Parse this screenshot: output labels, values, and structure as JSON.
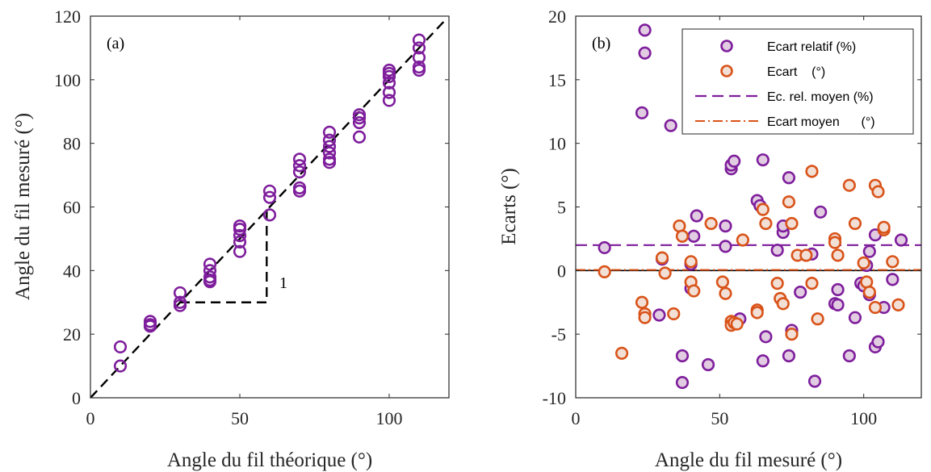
{
  "chart_data": [
    {
      "panel": "a",
      "type": "scatter",
      "panel_label": "(a)",
      "xlabel": "Angle du fil théorique (°)",
      "ylabel": "Angle du fil mesuré (°)",
      "xlim": [
        0,
        120
      ],
      "ylim": [
        0,
        120
      ],
      "xticks": [
        0,
        50,
        100
      ],
      "yticks": [
        0,
        20,
        40,
        60,
        80,
        100,
        120
      ],
      "marker_color": "#7E1E9C",
      "points": [
        [
          10,
          16
        ],
        [
          10,
          10
        ],
        [
          20,
          24
        ],
        [
          20,
          23
        ],
        [
          20,
          22.5
        ],
        [
          30,
          33
        ],
        [
          30,
          30
        ],
        [
          30,
          29
        ],
        [
          40,
          42
        ],
        [
          40,
          40
        ],
        [
          40,
          38
        ],
        [
          40,
          36.5
        ],
        [
          40,
          37
        ],
        [
          50,
          54
        ],
        [
          50,
          53
        ],
        [
          50,
          51
        ],
        [
          50,
          49
        ],
        [
          50,
          46
        ],
        [
          60,
          65
        ],
        [
          60,
          63
        ],
        [
          60,
          57.5
        ],
        [
          70,
          75
        ],
        [
          70,
          73
        ],
        [
          70,
          71
        ],
        [
          70,
          66
        ],
        [
          70,
          65
        ],
        [
          80,
          83.5
        ],
        [
          80,
          81
        ],
        [
          80,
          79
        ],
        [
          80,
          77
        ],
        [
          80,
          75
        ],
        [
          80,
          74
        ],
        [
          90,
          89
        ],
        [
          90,
          88
        ],
        [
          90,
          86.5
        ],
        [
          90,
          82
        ],
        [
          100,
          103
        ],
        [
          100,
          102
        ],
        [
          100,
          101
        ],
        [
          100,
          99
        ],
        [
          100,
          96
        ],
        [
          100,
          93.5
        ],
        [
          110,
          112.5
        ],
        [
          110,
          110
        ],
        [
          110,
          107
        ],
        [
          110,
          104
        ],
        [
          110,
          103
        ]
      ],
      "reference_line": {
        "style": "dashed",
        "from": [
          0,
          0
        ],
        "to": [
          119,
          119
        ]
      },
      "slope_triangle": {
        "x": [
          30,
          59
        ],
        "y": [
          30,
          59
        ],
        "label": "1"
      }
    },
    {
      "panel": "b",
      "type": "scatter",
      "panel_label": "(b)",
      "xlabel": "Angle du fil mesuré (°)",
      "ylabel": "Ecarts    (°)",
      "xlim": [
        0,
        120
      ],
      "ylim": [
        -10,
        20
      ],
      "xticks": [
        0,
        50,
        100
      ],
      "yticks": [
        -10,
        -5,
        0,
        5,
        10,
        15,
        20
      ],
      "legend_position": "top-right",
      "series": [
        {
          "name": "Ecart relatif (%)",
          "color": "#7E1E9C",
          "fill": "#E2CCE2",
          "points": [
            [
              10,
              1.8
            ],
            [
              23,
              12.4
            ],
            [
              24,
              18.9
            ],
            [
              24,
              17.1
            ],
            [
              29,
              -3.5
            ],
            [
              30,
              0.9
            ],
            [
              33,
              11.4
            ],
            [
              37,
              -6.7
            ],
            [
              37,
              -8.8
            ],
            [
              40,
              -1.4
            ],
            [
              40,
              0.5
            ],
            [
              41,
              2.7
            ],
            [
              42,
              4.3
            ],
            [
              46,
              -7.4
            ],
            [
              52,
              3.5
            ],
            [
              52,
              1.9
            ],
            [
              54,
              8.0
            ],
            [
              54,
              8.3
            ],
            [
              55,
              8.6
            ],
            [
              57,
              -3.8
            ],
            [
              63,
              5.5
            ],
            [
              64,
              5.1
            ],
            [
              65,
              -7.1
            ],
            [
              66,
              -5.2
            ],
            [
              65,
              8.7
            ],
            [
              70,
              1.6
            ],
            [
              72,
              3.0
            ],
            [
              72,
              3.5
            ],
            [
              74,
              7.3
            ],
            [
              74,
              -6.7
            ],
            [
              75,
              -4.7
            ],
            [
              78,
              -1.7
            ],
            [
              80,
              1.2
            ],
            [
              82,
              1.3
            ],
            [
              83,
              -8.7
            ],
            [
              85,
              4.6
            ],
            [
              90,
              -2.6
            ],
            [
              91,
              -2.7
            ],
            [
              91,
              -1.5
            ],
            [
              95,
              -6.7
            ],
            [
              97,
              -3.7
            ],
            [
              99,
              -1.0
            ],
            [
              100,
              -1.2
            ],
            [
              101,
              0.4
            ],
            [
              102,
              1.5
            ],
            [
              102,
              -1.9
            ],
            [
              104,
              2.8
            ],
            [
              104,
              -6.0
            ],
            [
              105,
              -5.6
            ],
            [
              107,
              -2.9
            ],
            [
              110,
              -0.7
            ],
            [
              113,
              2.4
            ]
          ]
        },
        {
          "name": "Ecart    (°)",
          "color": "#D95319",
          "fill": "#F2DFD5",
          "points": [
            [
              10,
              -0.1
            ],
            [
              16,
              -6.5
            ],
            [
              23,
              -2.5
            ],
            [
              24,
              -3.4
            ],
            [
              24,
              -3.7
            ],
            [
              30,
              1.0
            ],
            [
              31,
              -0.2
            ],
            [
              34,
              -3.4
            ],
            [
              36,
              3.5
            ],
            [
              37,
              2.7
            ],
            [
              40,
              0.7
            ],
            [
              40,
              -0.9
            ],
            [
              41,
              -1.6
            ],
            [
              47,
              3.7
            ],
            [
              51,
              -0.9
            ],
            [
              52,
              -1.8
            ],
            [
              54,
              -4.0
            ],
            [
              54,
              -4.3
            ],
            [
              55,
              -4.1
            ],
            [
              56,
              -4.2
            ],
            [
              58,
              2.4
            ],
            [
              63,
              -3.1
            ],
            [
              63,
              -3.3
            ],
            [
              65,
              4.8
            ],
            [
              66,
              3.7
            ],
            [
              70,
              -1.0
            ],
            [
              71,
              -2.2
            ],
            [
              72,
              -2.6
            ],
            [
              74,
              5.4
            ],
            [
              75,
              -5.0
            ],
            [
              75,
              3.7
            ],
            [
              77,
              1.2
            ],
            [
              80,
              1.2
            ],
            [
              82,
              7.8
            ],
            [
              82,
              -1.0
            ],
            [
              84,
              -3.8
            ],
            [
              90,
              2.5
            ],
            [
              90,
              2.2
            ],
            [
              91,
              1.2
            ],
            [
              95,
              6.7
            ],
            [
              97,
              3.7
            ],
            [
              100,
              0.6
            ],
            [
              101,
              -0.9
            ],
            [
              102,
              -1.7
            ],
            [
              104,
              6.7
            ],
            [
              104,
              -2.9
            ],
            [
              105,
              6.2
            ],
            [
              107,
              3.2
            ],
            [
              107,
              3.4
            ],
            [
              110,
              0.7
            ],
            [
              112,
              -2.7
            ]
          ]
        }
      ],
      "lines": [
        {
          "name": "Ec. rel. moyen (%)",
          "y": 2.0,
          "color": "#7E1E9C",
          "style": "dashed"
        },
        {
          "name": "Ecart moyen      (°)",
          "y": 0.05,
          "color": "#D95319",
          "style": "dashdot"
        }
      ],
      "zero_line": {
        "y": 0,
        "color": "#000000"
      }
    }
  ]
}
